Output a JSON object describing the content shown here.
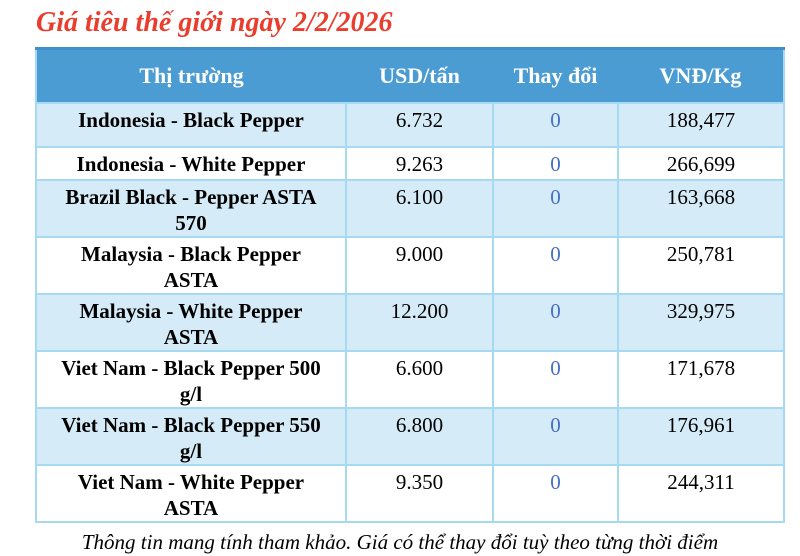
{
  "title": "Giá tiêu thế giới ngày 2/2/2026",
  "table": {
    "headers": {
      "market": "Thị trường",
      "usd": "USD/tấn",
      "change": "Thay đổi",
      "vnd": "VNĐ/Kg"
    },
    "rows": [
      {
        "market": "Indonesia - Black Pepper",
        "usd": "6.732",
        "change": "0",
        "vnd": "188,477"
      },
      {
        "market": "Indonesia - White Pepper",
        "usd": "9.263",
        "change": "0",
        "vnd": "266,699"
      },
      {
        "market": "Brazil Black - Pepper ASTA 570",
        "usd": "6.100",
        "change": "0",
        "vnd": "163,668"
      },
      {
        "market": "Malaysia - Black Pepper ASTA",
        "usd": "9.000",
        "change": "0",
        "vnd": "250,781"
      },
      {
        "market": "Malaysia - White Pepper ASTA",
        "usd": "12.200",
        "change": "0",
        "vnd": "329,975"
      },
      {
        "market": "Viet Nam - Black Pepper 500 g/l",
        "usd": "6.600",
        "change": "0",
        "vnd": "171,678"
      },
      {
        "market": "Viet Nam - Black Pepper 550 g/l",
        "usd": "6.800",
        "change": "0",
        "vnd": "176,961"
      },
      {
        "market": "Viet Nam - White Pepper ASTA",
        "usd": "9.350",
        "change": "0",
        "vnd": "244,311"
      }
    ]
  },
  "footer_note": "Thông tin mang tính tham khảo. Giá có thể thay đổi tuỳ theo từng thời điểm",
  "colors": {
    "header_bg": "#4B9CD3",
    "alt_row_bg": "#D5EBF7",
    "grid_line": "#A6D9F2",
    "title_red": "#E93E2E",
    "change_blue": "#4470C4"
  }
}
